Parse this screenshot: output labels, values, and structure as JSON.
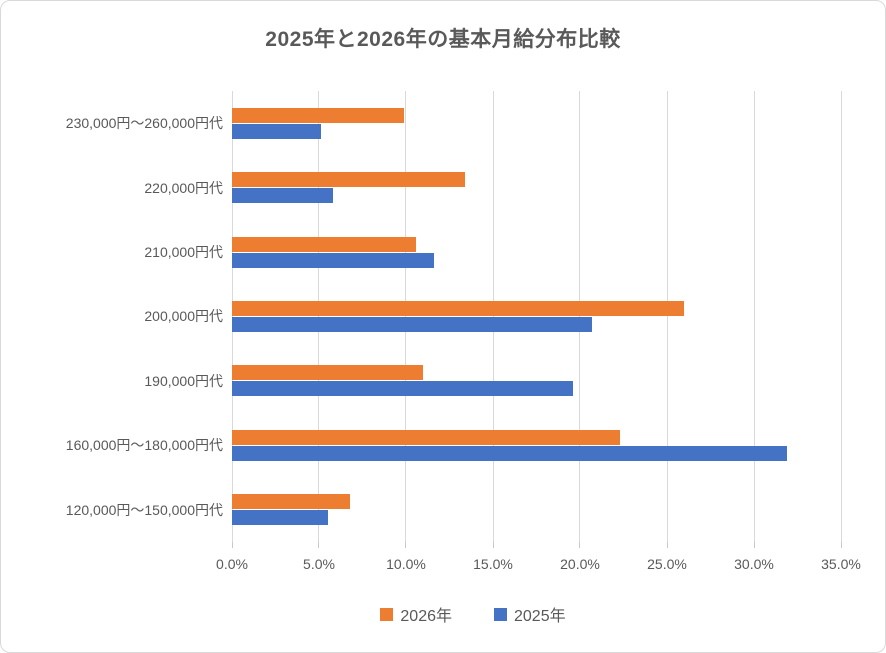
{
  "chart_data": {
    "type": "bar",
    "orientation": "horizontal",
    "title": "2025年と2026年の基本月給分布比較",
    "categories": [
      "230,000円〜260,000円代",
      "220,000円代",
      "210,000円代",
      "200,000円代",
      "190,000円代",
      "160,000円〜180,000円代",
      "120,000円〜150,000円代"
    ],
    "series": [
      {
        "name": "2026年",
        "color": "#ED7D31",
        "values": [
          9.9,
          13.4,
          10.6,
          26.0,
          11.0,
          22.3,
          6.8
        ]
      },
      {
        "name": "2025年",
        "color": "#4472C4",
        "values": [
          5.1,
          5.8,
          11.6,
          20.7,
          19.6,
          31.9,
          5.5
        ]
      }
    ],
    "xlabel": "",
    "ylabel": "",
    "xlim": [
      0,
      35
    ],
    "tick_step": 5,
    "x_ticks": [
      "0.0%",
      "5.0%",
      "10.0%",
      "15.0%",
      "20.0%",
      "25.0%",
      "30.0%",
      "35.0%"
    ],
    "grid": true,
    "legend_position": "bottom",
    "colors": {
      "text": "#595959",
      "gridline": "#D9D9D9",
      "border": "#D9D9D9",
      "background": "#FFFFFF"
    }
  }
}
